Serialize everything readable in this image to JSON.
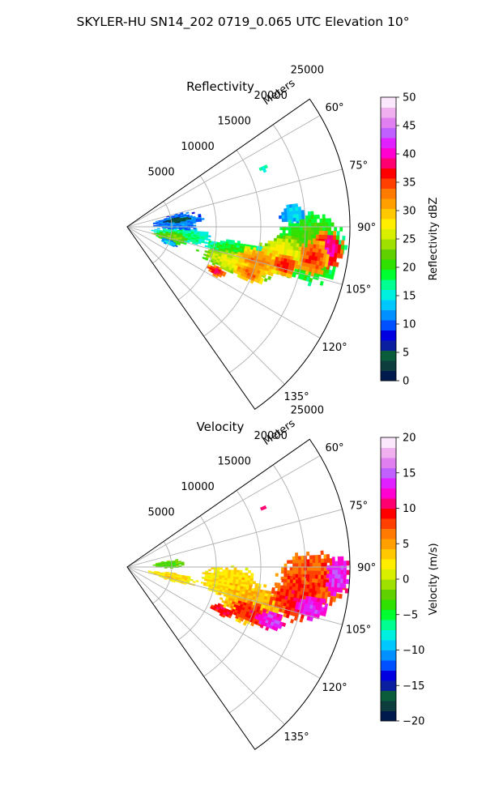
{
  "title": "SKYLER-HU  SN14_202  0719_0.065 UTC Elevation 10°",
  "chart_data": [
    {
      "type": "heatmap",
      "title": "Reflectivity",
      "projection": "polar-sector",
      "range_label": "Meters",
      "range_ticks": [
        5000,
        10000,
        15000,
        20000,
        25000
      ],
      "range_tick_labels": [
        "5000",
        "10000",
        "15000",
        "20000",
        "25000"
      ],
      "range_max": 25000,
      "azimuth_range": [
        55,
        145
      ],
      "azimuth_ticks": [
        60,
        75,
        90,
        105,
        120,
        135
      ],
      "azimuth_tick_labels": [
        "60°",
        "75°",
        "90°",
        "105°",
        "120°",
        "135°"
      ],
      "grid": true,
      "colorbar": {
        "label": "Reflectivity dBZ",
        "min": 0,
        "max": 50,
        "ticks": [
          0,
          5,
          10,
          15,
          20,
          25,
          30,
          35,
          40,
          45,
          50
        ],
        "tick_labels": [
          "0",
          "5",
          "10",
          "15",
          "20",
          "25",
          "30",
          "35",
          "40",
          "45",
          "50"
        ],
        "colors": [
          "#001a4d",
          "#0d3d3d",
          "#0b5c3a",
          "#0a1fa0",
          "#0000e0",
          "#0050ff",
          "#0090ff",
          "#00c8ff",
          "#00f0e0",
          "#00ff90",
          "#00ff30",
          "#30e000",
          "#60d000",
          "#a0e000",
          "#d8f000",
          "#ffee00",
          "#ffc800",
          "#ffa000",
          "#ff7a00",
          "#ff4000",
          "#ff0000",
          "#ff0070",
          "#ff00d0",
          "#e020ff",
          "#c060ff",
          "#e080f0",
          "#f0b0f0",
          "#fce8fc"
        ]
      },
      "echoes": [
        {
          "az": 85,
          "r": 18500,
          "dr": 1500,
          "da": 4,
          "value": 14
        },
        {
          "az": 96,
          "r": 20500,
          "dr": 4500,
          "da": 12,
          "value": 22
        },
        {
          "az": 100,
          "r": 17500,
          "dr": 3000,
          "da": 8,
          "value": 28
        },
        {
          "az": 102,
          "r": 12500,
          "dr": 4000,
          "da": 6,
          "value": 20
        },
        {
          "az": 108,
          "r": 12500,
          "dr": 4500,
          "da": 6,
          "value": 27
        },
        {
          "az": 104,
          "r": 15000,
          "dr": 3000,
          "da": 6,
          "value": 33
        },
        {
          "az": 96,
          "r": 22500,
          "dr": 2000,
          "da": 6,
          "value": 40
        },
        {
          "az": 99,
          "r": 21000,
          "dr": 2000,
          "da": 6,
          "value": 36
        },
        {
          "az": 103,
          "r": 18000,
          "dr": 1800,
          "da": 4,
          "value": 37
        },
        {
          "az": 110,
          "r": 14500,
          "dr": 2000,
          "da": 4,
          "value": 34
        },
        {
          "az": 116,
          "r": 11000,
          "dr": 1200,
          "da": 3,
          "value": 38
        },
        {
          "az": 98,
          "r": 6000,
          "dr": 4000,
          "da": 8,
          "value": 18
        },
        {
          "az": 84,
          "r": 5500,
          "dr": 3000,
          "da": 10,
          "value": 12
        },
        {
          "az": 82,
          "r": 5500,
          "dr": 1500,
          "da": 3,
          "value": 4
        },
        {
          "az": 104,
          "r": 3800,
          "dr": 1200,
          "da": 3,
          "value": 36
        },
        {
          "az": 103,
          "r": 5000,
          "dr": 2000,
          "da": 8,
          "value": 24
        },
        {
          "az": 110,
          "r": 4800,
          "dr": 1000,
          "da": 4,
          "value": 14
        },
        {
          "az": 66,
          "r": 16500,
          "dr": 600,
          "da": 1.5,
          "value": 17
        }
      ]
    },
    {
      "type": "heatmap",
      "title": "Velocity",
      "projection": "polar-sector",
      "range_label": "Meters",
      "range_ticks": [
        5000,
        10000,
        15000,
        20000,
        25000
      ],
      "range_tick_labels": [
        "5000",
        "10000",
        "15000",
        "20000",
        "25000"
      ],
      "range_max": 25000,
      "azimuth_range": [
        55,
        145
      ],
      "azimuth_ticks": [
        60,
        75,
        90,
        105,
        120,
        135
      ],
      "azimuth_tick_labels": [
        "60°",
        "75°",
        "90°",
        "105°",
        "120°",
        "135°"
      ],
      "grid": true,
      "colorbar": {
        "label": "Velocity (m/s)",
        "min": -20,
        "max": 20,
        "ticks": [
          -20,
          -15,
          -10,
          -5,
          0,
          5,
          10,
          15,
          20
        ],
        "tick_labels": [
          "−20",
          "−15",
          "−10",
          "−5",
          "0",
          "5",
          "10",
          "15",
          "20"
        ],
        "colors": [
          "#001a4d",
          "#0d3d3d",
          "#0b5c3a",
          "#0a1fa0",
          "#0000e0",
          "#0050ff",
          "#0090ff",
          "#00c8ff",
          "#00f0e0",
          "#00ff90",
          "#00ff30",
          "#30e000",
          "#60d000",
          "#a0e000",
          "#d8f000",
          "#ffee00",
          "#ffc800",
          "#ffa000",
          "#ff7a00",
          "#ff4000",
          "#ff0000",
          "#ff0070",
          "#ff00d0",
          "#e020ff",
          "#c060ff",
          "#e080f0",
          "#f0b0f0",
          "#fce8fc"
        ]
      },
      "echoes": [
        {
          "az": 98,
          "r": 11500,
          "dr": 3500,
          "da": 10,
          "value": 3
        },
        {
          "az": 106,
          "r": 14500,
          "dr": 4000,
          "da": 10,
          "value": 4
        },
        {
          "az": 102,
          "r": 5000,
          "dr": 3000,
          "da": 6,
          "value": 3
        },
        {
          "az": 86,
          "r": 4500,
          "dr": 2000,
          "da": 6,
          "value": -3
        },
        {
          "az": 94,
          "r": 20500,
          "dr": 4000,
          "da": 10,
          "value": 8
        },
        {
          "az": 100,
          "r": 19000,
          "dr": 3000,
          "da": 8,
          "value": 9
        },
        {
          "az": 110,
          "r": 14500,
          "dr": 2500,
          "da": 5,
          "value": 9
        },
        {
          "az": 114,
          "r": 11500,
          "dr": 1500,
          "da": 3,
          "value": 10
        },
        {
          "az": 92,
          "r": 23500,
          "dr": 1500,
          "da": 6,
          "value": 14
        },
        {
          "az": 102,
          "r": 21000,
          "dr": 2000,
          "da": 4,
          "value": 14
        },
        {
          "az": 110,
          "r": 17000,
          "dr": 1800,
          "da": 4,
          "value": 14
        },
        {
          "az": 66,
          "r": 16500,
          "dr": 500,
          "da": 1.5,
          "value": 12
        }
      ]
    }
  ]
}
